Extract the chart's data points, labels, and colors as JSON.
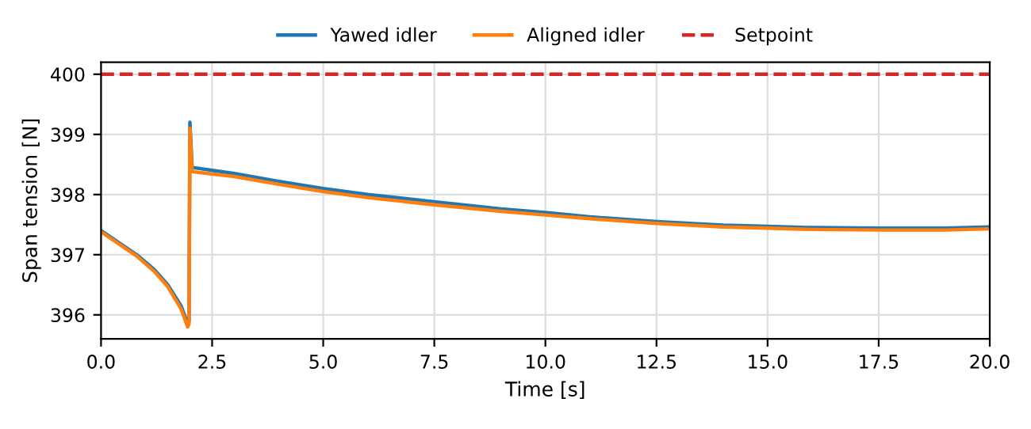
{
  "chart_data": {
    "type": "line",
    "xlabel": "Time [s]",
    "ylabel": "Span tension [N]",
    "xlim": [
      0,
      20
    ],
    "xticks": [
      {
        "value": 0,
        "label": "0.0"
      },
      2.5,
      {
        "value": 5,
        "label": "5.0"
      },
      7.5,
      {
        "value": 10,
        "label": "10.0"
      },
      12.5,
      {
        "value": 15,
        "label": "15.0"
      },
      17.5,
      {
        "value": 20,
        "label": "20.0"
      }
    ],
    "ylim": [
      395.6,
      400.2
    ],
    "yticks": [
      396,
      397,
      398,
      399,
      400
    ],
    "grid": true,
    "legend": "top",
    "line_style": "solid",
    "marker": "none",
    "series": [
      {
        "name": "Yawed idler",
        "color": "#1f77b4",
        "x": [
          0,
          0.4,
          0.8,
          1.2,
          1.5,
          1.8,
          1.95,
          1.98,
          2.0,
          2.05,
          3,
          4,
          5,
          6,
          7.5,
          9,
          10,
          11,
          12.5,
          14,
          15,
          16,
          17.5,
          19,
          20
        ],
        "values": [
          397.4,
          397.2,
          397.0,
          396.75,
          396.5,
          396.15,
          395.85,
          395.9,
          399.2,
          398.45,
          398.35,
          398.22,
          398.1,
          398.0,
          397.88,
          397.76,
          397.7,
          397.63,
          397.55,
          397.49,
          397.47,
          397.45,
          397.44,
          397.44,
          397.46
        ]
      },
      {
        "name": "Aligned idler",
        "color": "#ff7f0e",
        "x": [
          0,
          0.4,
          0.8,
          1.2,
          1.5,
          1.8,
          1.95,
          1.98,
          2.0,
          2.05,
          3,
          4,
          5,
          6,
          7.5,
          9,
          10,
          11,
          12.5,
          14,
          15,
          16,
          17.5,
          19,
          20
        ],
        "values": [
          397.38,
          397.18,
          396.98,
          396.72,
          396.47,
          396.1,
          395.8,
          395.85,
          399.1,
          398.38,
          398.3,
          398.17,
          398.05,
          397.95,
          397.83,
          397.72,
          397.66,
          397.6,
          397.52,
          397.46,
          397.44,
          397.42,
          397.41,
          397.41,
          397.43
        ]
      }
    ],
    "ref_lines": [
      {
        "axis": "y",
        "value": 400,
        "label": "Setpoint",
        "color": "#d62728",
        "line_style": "dashed"
      }
    ]
  }
}
